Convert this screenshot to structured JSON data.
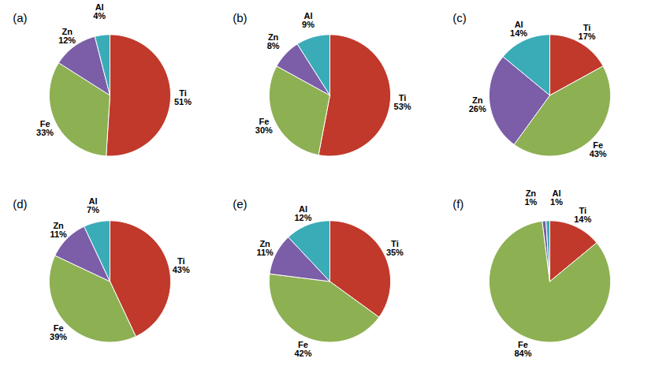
{
  "chart_data": [
    {
      "type": "pie",
      "title": "(a)",
      "categories": [
        "Ti",
        "Fe",
        "Zn",
        "Al"
      ],
      "values": [
        51,
        33,
        12,
        4
      ],
      "value_labels": [
        "51%",
        "33%",
        "12%",
        "4%"
      ],
      "colors": [
        "#c0392b",
        "#8db053",
        "#7b5ea7",
        "#3aacb8"
      ]
    },
    {
      "type": "pie",
      "title": "(b)",
      "categories": [
        "Ti",
        "Fe",
        "Zn",
        "Al"
      ],
      "values": [
        53,
        30,
        8,
        9
      ],
      "value_labels": [
        "53%",
        "30%",
        "8%",
        "9%"
      ],
      "colors": [
        "#c0392b",
        "#8db053",
        "#7b5ea7",
        "#3aacb8"
      ]
    },
    {
      "type": "pie",
      "title": "(c)",
      "categories": [
        "Ti",
        "Fe",
        "Zn",
        "Al"
      ],
      "values": [
        17,
        43,
        26,
        14
      ],
      "value_labels": [
        "17%",
        "43%",
        "26%",
        "14%"
      ],
      "colors": [
        "#c0392b",
        "#8db053",
        "#7b5ea7",
        "#3aacb8"
      ]
    },
    {
      "type": "pie",
      "title": "(d)",
      "categories": [
        "Ti",
        "Fe",
        "Zn",
        "Al"
      ],
      "values": [
        43,
        39,
        11,
        7
      ],
      "value_labels": [
        "43%",
        "39%",
        "11%",
        "7%"
      ],
      "colors": [
        "#c0392b",
        "#8db053",
        "#7b5ea7",
        "#3aacb8"
      ]
    },
    {
      "type": "pie",
      "title": "(e)",
      "categories": [
        "Ti",
        "Fe",
        "Zn",
        "Al"
      ],
      "values": [
        35,
        42,
        11,
        12
      ],
      "value_labels": [
        "35%",
        "42%",
        "11%",
        "12%"
      ],
      "colors": [
        "#c0392b",
        "#8db053",
        "#7b5ea7",
        "#3aacb8"
      ]
    },
    {
      "type": "pie",
      "title": "(f)",
      "categories": [
        "Ti",
        "Fe",
        "Zn",
        "Al"
      ],
      "values": [
        14,
        84,
        1,
        1
      ],
      "value_labels": [
        "14%",
        "84%",
        "1%",
        "1%"
      ],
      "colors": [
        "#c0392b",
        "#8db053",
        "#7b5ea7",
        "#3aacb8"
      ]
    }
  ]
}
